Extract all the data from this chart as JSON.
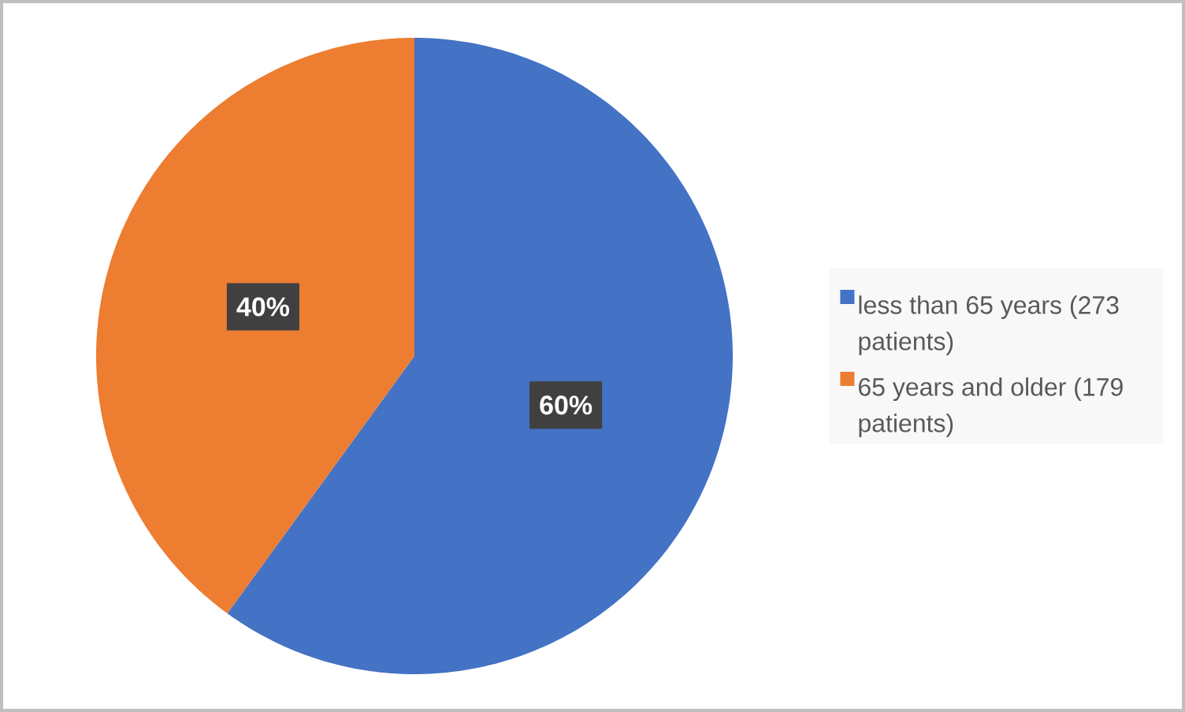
{
  "chart_data": {
    "type": "pie",
    "categories": [
      "less than 65 years (273 patients)",
      "65 years and older (179 patients)"
    ],
    "values": [
      60,
      40
    ],
    "colors": [
      "#4472c4",
      "#ed7d31"
    ],
    "value_labels": [
      "60%",
      "40%"
    ],
    "legend": "right"
  }
}
